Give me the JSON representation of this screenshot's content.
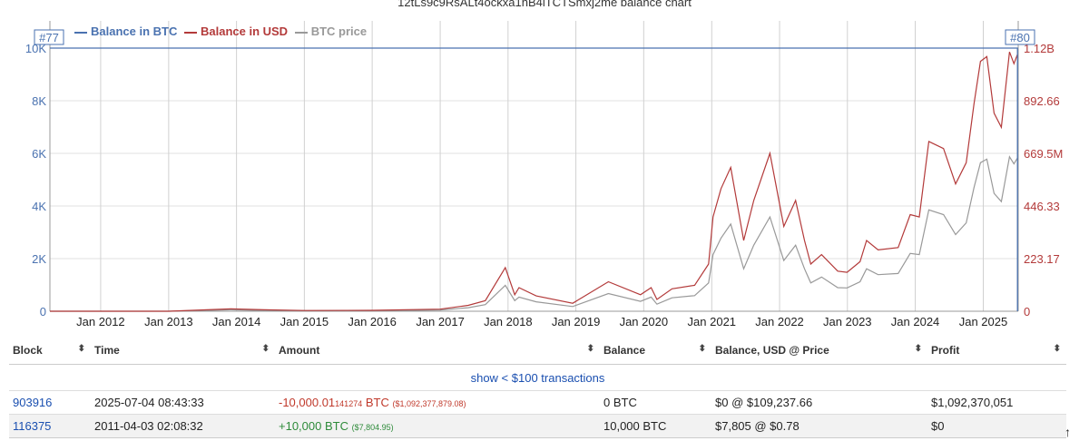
{
  "chart_data": {
    "type": "line",
    "title": "12tLs9c9RsALt4ockxa1hB4iTCTSmxj2me balance chart",
    "xlabel": "",
    "ylabel": "",
    "x_ticks": [
      "Jan 2012",
      "Jan 2013",
      "Jan 2014",
      "Jan 2015",
      "Jan 2016",
      "Jan 2017",
      "Jan 2018",
      "Jan 2019",
      "Jan 2020",
      "Jan 2021",
      "Jan 2022",
      "Jan 2023",
      "Jan 2024",
      "Jan 2025"
    ],
    "y_left_ticks": [
      "0",
      "2K",
      "4K",
      "6K",
      "8K",
      "10K"
    ],
    "y_left_lim": [
      0,
      10000
    ],
    "y_right_ticks": [
      "0",
      "223.17",
      "446.33",
      "669.5M",
      "892.66",
      "1.12B"
    ],
    "y_right_lim": [
      0,
      1116000000
    ],
    "legend_position": "top-left",
    "grid": true,
    "markers": [
      {
        "label": "#77",
        "date": "2011-04-03"
      },
      {
        "label": "#80",
        "date": "2025-07-04"
      }
    ],
    "series": [
      {
        "name": "Balance in BTC",
        "color": "#4a72b0",
        "axis": "left",
        "points": [
          [
            "2011-04-03",
            10000
          ],
          [
            "2025-07-04",
            10000
          ],
          [
            "2025-07-04",
            0
          ]
        ]
      },
      {
        "name": "Balance in USD",
        "color": "#b33a3a",
        "axis": "right",
        "points": [
          [
            "2011-04-03",
            0
          ],
          [
            "2013-01-01",
            130000
          ],
          [
            "2013-12-01",
            10000000
          ],
          [
            "2014-06-01",
            6000000
          ],
          [
            "2015-01-01",
            3000000
          ],
          [
            "2016-01-01",
            4000000
          ],
          [
            "2017-01-01",
            9000000
          ],
          [
            "2017-06-01",
            25000000
          ],
          [
            "2017-09-01",
            45000000
          ],
          [
            "2017-12-17",
            185000000
          ],
          [
            "2018-02-06",
            70000000
          ],
          [
            "2018-03-01",
            100000000
          ],
          [
            "2018-06-01",
            65000000
          ],
          [
            "2018-12-15",
            34000000
          ],
          [
            "2019-06-25",
            125000000
          ],
          [
            "2019-12-15",
            70000000
          ],
          [
            "2020-02-10",
            100000000
          ],
          [
            "2020-03-12",
            50000000
          ],
          [
            "2020-06-01",
            95000000
          ],
          [
            "2020-10-01",
            110000000
          ],
          [
            "2020-12-15",
            200000000
          ],
          [
            "2021-01-08",
            400000000
          ],
          [
            "2021-02-20",
            520000000
          ],
          [
            "2021-04-13",
            610000000
          ],
          [
            "2021-06-22",
            300000000
          ],
          [
            "2021-08-15",
            470000000
          ],
          [
            "2021-11-10",
            670000000
          ],
          [
            "2022-01-24",
            360000000
          ],
          [
            "2022-03-28",
            470000000
          ],
          [
            "2022-05-15",
            300000000
          ],
          [
            "2022-06-18",
            200000000
          ],
          [
            "2022-08-15",
            240000000
          ],
          [
            "2022-11-10",
            170000000
          ],
          [
            "2022-12-30",
            165000000
          ],
          [
            "2023-03-10",
            210000000
          ],
          [
            "2023-04-14",
            300000000
          ],
          [
            "2023-06-15",
            260000000
          ],
          [
            "2023-10-01",
            270000000
          ],
          [
            "2023-12-05",
            410000000
          ],
          [
            "2024-01-23",
            400000000
          ],
          [
            "2024-03-14",
            720000000
          ],
          [
            "2024-06-01",
            690000000
          ],
          [
            "2024-08-05",
            540000000
          ],
          [
            "2024-10-01",
            630000000
          ],
          [
            "2024-11-12",
            880000000
          ],
          [
            "2024-12-17",
            1060000000
          ],
          [
            "2025-01-20",
            1080000000
          ],
          [
            "2025-02-28",
            840000000
          ],
          [
            "2025-04-08",
            780000000
          ],
          [
            "2025-05-22",
            1100000000
          ],
          [
            "2025-06-15",
            1050000000
          ],
          [
            "2025-07-04",
            1090000000
          ]
        ]
      },
      {
        "name": "BTC price",
        "color": "#999999",
        "axis": "right",
        "points": [
          [
            "2011-04-03",
            0
          ],
          [
            "2013-01-01",
            100000
          ],
          [
            "2013-12-01",
            6000000
          ],
          [
            "2014-06-01",
            3500000
          ],
          [
            "2015-01-01",
            1800000
          ],
          [
            "2016-01-01",
            2500000
          ],
          [
            "2017-01-01",
            5500000
          ],
          [
            "2017-06-01",
            15000000
          ],
          [
            "2017-09-01",
            28000000
          ],
          [
            "2017-12-17",
            110000000
          ],
          [
            "2018-02-06",
            45000000
          ],
          [
            "2018-03-01",
            60000000
          ],
          [
            "2018-06-01",
            40000000
          ],
          [
            "2018-12-15",
            20000000
          ],
          [
            "2019-06-25",
            75000000
          ],
          [
            "2019-12-15",
            42000000
          ],
          [
            "2020-02-10",
            60000000
          ],
          [
            "2020-03-12",
            30000000
          ],
          [
            "2020-06-01",
            57000000
          ],
          [
            "2020-10-01",
            66000000
          ],
          [
            "2020-12-15",
            120000000
          ],
          [
            "2021-01-08",
            240000000
          ],
          [
            "2021-02-20",
            310000000
          ],
          [
            "2021-04-13",
            370000000
          ],
          [
            "2021-06-22",
            180000000
          ],
          [
            "2021-08-15",
            280000000
          ],
          [
            "2021-11-10",
            400000000
          ],
          [
            "2022-01-24",
            215000000
          ],
          [
            "2022-03-28",
            280000000
          ],
          [
            "2022-05-15",
            180000000
          ],
          [
            "2022-06-18",
            120000000
          ],
          [
            "2022-08-15",
            145000000
          ],
          [
            "2022-11-10",
            100000000
          ],
          [
            "2022-12-30",
            99000000
          ],
          [
            "2023-03-10",
            125000000
          ],
          [
            "2023-04-14",
            180000000
          ],
          [
            "2023-06-15",
            155000000
          ],
          [
            "2023-10-01",
            160000000
          ],
          [
            "2023-12-05",
            245000000
          ],
          [
            "2024-01-23",
            240000000
          ],
          [
            "2024-03-14",
            430000000
          ],
          [
            "2024-06-01",
            410000000
          ],
          [
            "2024-08-05",
            325000000
          ],
          [
            "2024-10-01",
            375000000
          ],
          [
            "2024-11-12",
            525000000
          ],
          [
            "2024-12-17",
            630000000
          ],
          [
            "2025-01-20",
            645000000
          ],
          [
            "2025-02-28",
            500000000
          ],
          [
            "2025-04-08",
            465000000
          ],
          [
            "2025-05-22",
            655000000
          ],
          [
            "2025-06-15",
            625000000
          ],
          [
            "2025-07-04",
            650000000
          ]
        ]
      }
    ]
  },
  "table": {
    "headers": [
      "Block",
      "Time",
      "Amount",
      "Balance",
      "Balance, USD @ Price",
      "Profit"
    ],
    "sort_icon": "⬍",
    "show_small_label": "show < $100 transactions",
    "rows": [
      {
        "block": "903916",
        "time": "2025-07-04 08:43:33",
        "amount_main": "-10,000.01",
        "amount_frac": "141274",
        "amount_unit": " BTC",
        "amount_usd": "($1,092,377,879.08)",
        "balance": "0 BTC",
        "balance_usd": "$0 @ $109,237.66",
        "profit": "$1,092,370,051",
        "type": "out"
      },
      {
        "block": "116375",
        "time": "2011-04-03 02:08:32",
        "amount_main": "+10,000",
        "amount_frac": "",
        "amount_unit": " BTC",
        "amount_usd": "($7,804.95)",
        "balance": "10,000 BTC",
        "balance_usd": "$7,805 @ $0.78",
        "profit": "$0",
        "type": "in"
      }
    ]
  },
  "scroll_top_icon": "↑"
}
